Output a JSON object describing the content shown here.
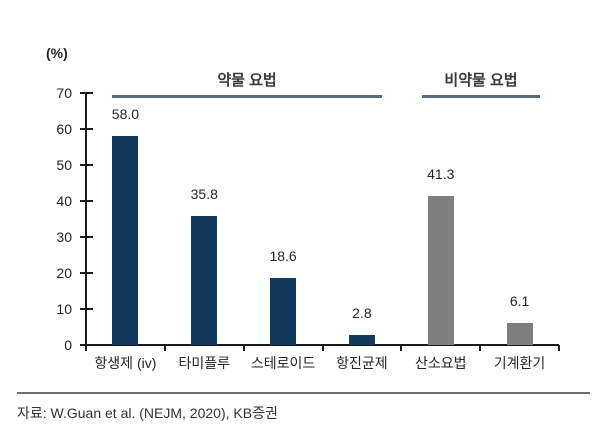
{
  "chart_data": {
    "type": "bar",
    "title": "",
    "ylabel": "(%)",
    "xlabel": "",
    "ylim": [
      0,
      70
    ],
    "yticks": [
      0,
      10,
      20,
      30,
      40,
      50,
      60,
      70
    ],
    "grid": false,
    "legend": "none",
    "categories": [
      "항생제 (iv)",
      "타미플루",
      "스테로이드",
      "항진균제",
      "산소요법",
      "기계환기"
    ],
    "values": [
      58.0,
      35.8,
      18.6,
      2.8,
      41.3,
      6.1
    ],
    "value_labels": [
      "58.0",
      "35.8",
      "18.6",
      "2.8",
      "41.3",
      "6.1"
    ],
    "bar_colors": [
      "#123a5e",
      "#123a5e",
      "#123a5e",
      "#123a5e",
      "#7f7f7f",
      "#7f7f7f"
    ],
    "groups": [
      {
        "label": "약물 요법",
        "category_span": [
          0,
          3
        ]
      },
      {
        "label": "비약물 요법",
        "category_span": [
          4,
          5
        ]
      }
    ]
  },
  "colors": {
    "navy": "#123a5e",
    "gray": "#7f7f7f",
    "header_line": "#5d6a76",
    "axis": "#1a1a1a",
    "separator": "#6f6f6f"
  },
  "footer": {
    "source": "자료: W.Guan et al. (NEJM, 2020), KB증권"
  }
}
